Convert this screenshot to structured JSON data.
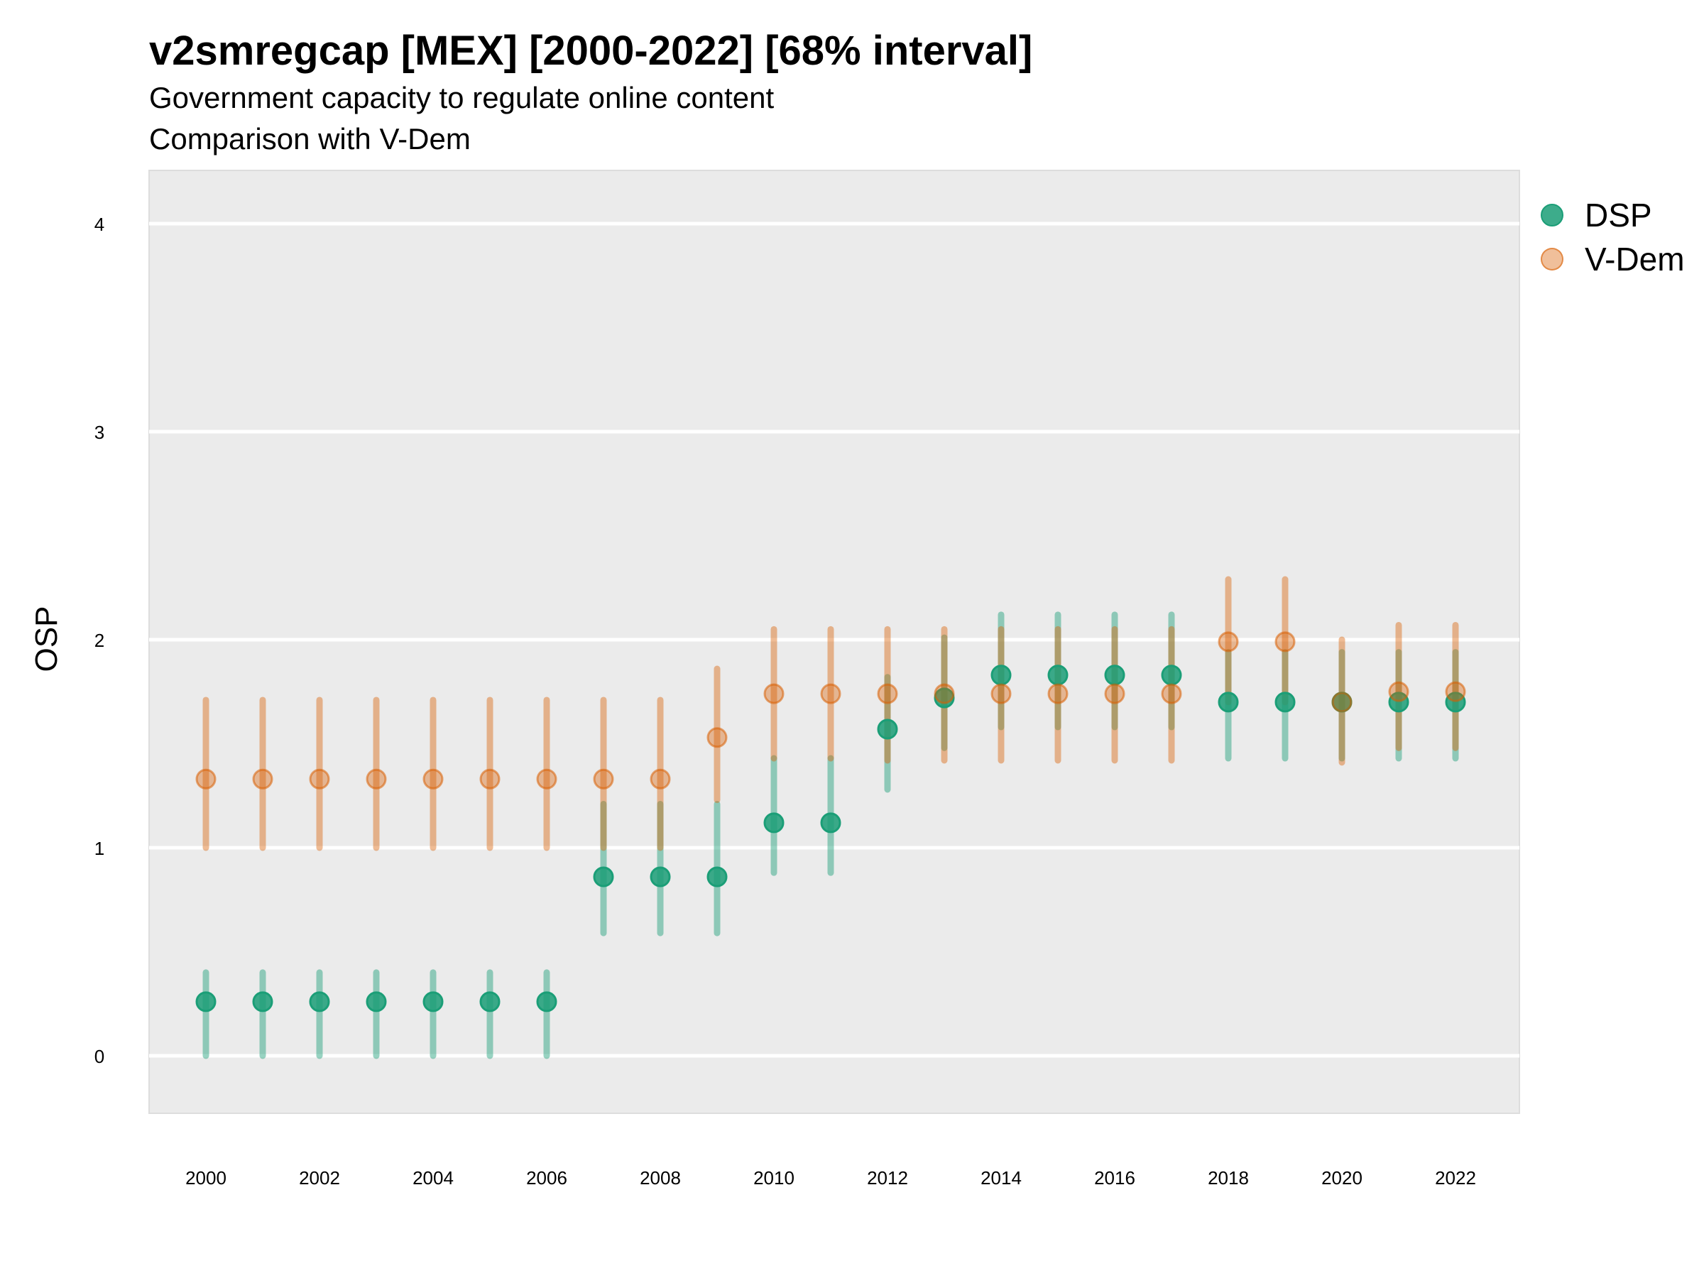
{
  "chart_data": {
    "type": "scatter",
    "title": "v2smregcap [MEX] [2000-2022] [68% interval]",
    "subtitle": [
      "Government capacity to regulate online content",
      "Comparison with V-Dem"
    ],
    "xlabel": "",
    "ylabel": "OSP",
    "xlim": [
      1999,
      2023.1
    ],
    "ylim": [
      -0.25,
      4.25
    ],
    "x_ticks": [
      2000,
      2002,
      2004,
      2006,
      2008,
      2010,
      2012,
      2014,
      2016,
      2018,
      2020,
      2022
    ],
    "y_ticks": [
      0,
      1,
      2,
      3,
      4
    ],
    "grid": true,
    "legend_position": "right",
    "x": [
      2000,
      2001,
      2002,
      2003,
      2004,
      2005,
      2006,
      2007,
      2008,
      2009,
      2010,
      2011,
      2012,
      2013,
      2014,
      2015,
      2016,
      2017,
      2018,
      2019,
      2020,
      2021,
      2022
    ],
    "series": [
      {
        "name": "DSP",
        "color": "#1b9e77",
        "values": [
          0.26,
          0.26,
          0.26,
          0.26,
          0.26,
          0.26,
          0.26,
          0.86,
          0.86,
          0.86,
          1.12,
          1.12,
          1.57,
          1.72,
          1.83,
          1.83,
          1.83,
          1.83,
          1.7,
          1.7,
          1.7,
          1.7,
          1.7
        ],
        "lower": [
          0.0,
          0.0,
          0.0,
          0.0,
          0.0,
          0.0,
          0.0,
          0.59,
          0.59,
          0.59,
          0.88,
          0.88,
          1.28,
          1.48,
          1.58,
          1.58,
          1.58,
          1.58,
          1.43,
          1.43,
          1.43,
          1.43,
          1.43
        ],
        "upper": [
          0.4,
          0.4,
          0.4,
          0.4,
          0.4,
          0.4,
          0.4,
          1.21,
          1.21,
          1.21,
          1.43,
          1.43,
          1.82,
          2.01,
          2.12,
          2.12,
          2.12,
          2.12,
          1.94,
          1.94,
          1.94,
          1.94,
          1.94
        ]
      },
      {
        "name": "V-Dem",
        "color": "#d95f02",
        "values": [
          1.33,
          1.33,
          1.33,
          1.33,
          1.33,
          1.33,
          1.33,
          1.33,
          1.33,
          1.53,
          1.74,
          1.74,
          1.74,
          1.74,
          1.74,
          1.74,
          1.74,
          1.74,
          1.99,
          1.99,
          1.7,
          1.75,
          1.75
        ],
        "lower": [
          1.0,
          1.0,
          1.0,
          1.0,
          1.0,
          1.0,
          1.0,
          1.0,
          1.0,
          1.23,
          1.43,
          1.43,
          1.42,
          1.42,
          1.42,
          1.42,
          1.42,
          1.42,
          1.7,
          1.7,
          1.41,
          1.48,
          1.48
        ],
        "upper": [
          1.71,
          1.71,
          1.71,
          1.71,
          1.71,
          1.71,
          1.71,
          1.71,
          1.71,
          1.86,
          2.05,
          2.05,
          2.05,
          2.05,
          2.05,
          2.05,
          2.05,
          2.05,
          2.29,
          2.29,
          2.0,
          2.07,
          2.07
        ]
      }
    ]
  }
}
